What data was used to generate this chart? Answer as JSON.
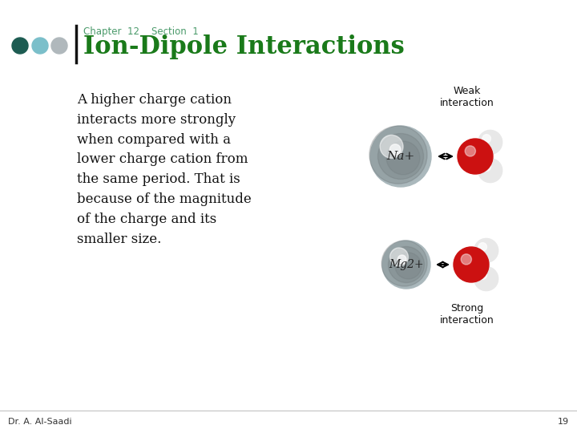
{
  "bg_color": "#ffffff",
  "title": "Ion-Dipole Interactions",
  "title_color": "#1a7a1a",
  "chapter_text": "Chapter  12    Section  1",
  "chapter_color": "#4a9a6a",
  "chapter_fontsize": 8.5,
  "title_fontsize": 22,
  "bullet_text": "A higher charge cation\ninteracts more strongly\nwhen compared with a\nlower charge cation from\nthe same period. That is\nbecause of the magnitude\nof the charge and its\nsmaller size.",
  "bullet_color": "#111111",
  "bullet_fontsize": 12,
  "footer_text": "Dr. A. Al-Saadi",
  "footer_color": "#333333",
  "footer_fontsize": 8,
  "page_number": "19",
  "dot_colors": [
    "#1d5c52",
    "#7bbfca",
    "#b0b8bc"
  ],
  "bar_color": "#111111",
  "weak_label": "Weak\ninteraction",
  "strong_label": "Strong\ninteraction",
  "na_label": "Na+",
  "mg_label": "Mg2+",
  "label_color": "#111111",
  "label_fontsize": 9,
  "na_sphere_color": "#aab8bc",
  "mg_sphere_color": "#aab8bc",
  "o_color": "#cc1111",
  "h_color": "#e8e8e8"
}
